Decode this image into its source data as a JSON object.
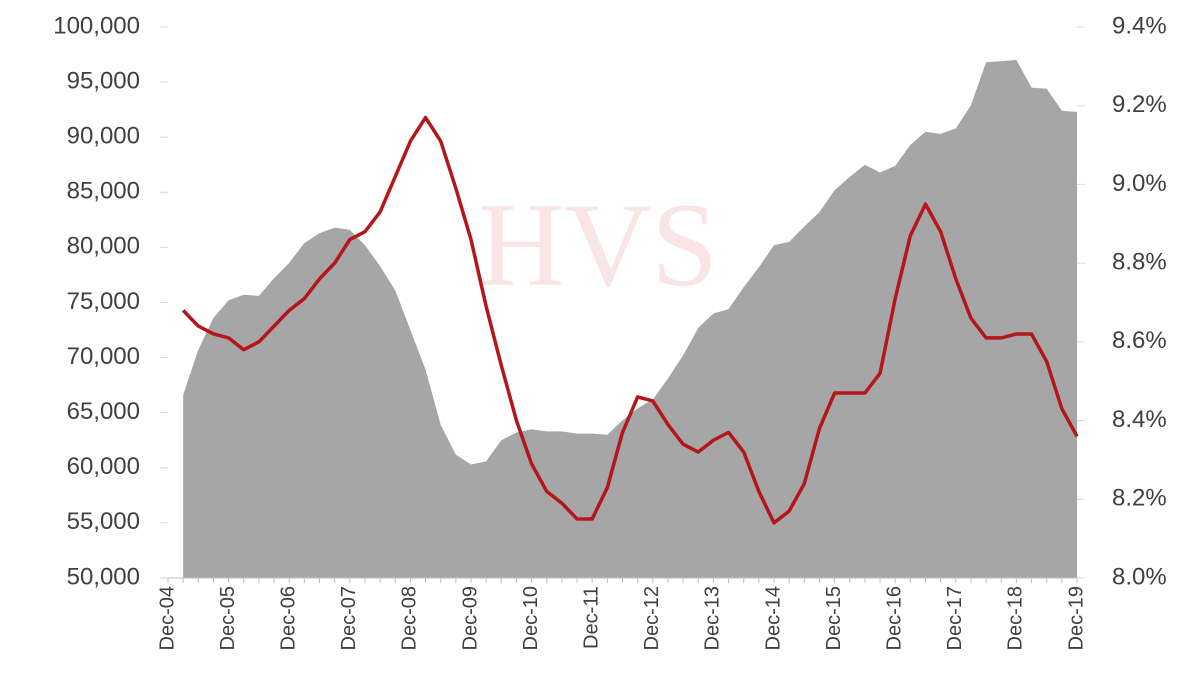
{
  "chart_data": {
    "type": "area",
    "watermark": "HVS",
    "categories": [
      "Dec-04",
      null,
      null,
      null,
      "Dec-05",
      null,
      null,
      null,
      "Dec-06",
      null,
      null,
      null,
      "Dec-07",
      null,
      null,
      null,
      "Dec-08",
      null,
      null,
      null,
      "Dec-09",
      null,
      null,
      null,
      "Dec-10",
      null,
      null,
      null,
      "Dec-11",
      null,
      null,
      null,
      "Dec-12",
      null,
      null,
      null,
      "Dec-13",
      null,
      null,
      null,
      "Dec-14",
      null,
      null,
      null,
      "Dec-15",
      null,
      null,
      null,
      "Dec-16",
      null,
      null,
      null,
      "Dec-17",
      null,
      null,
      null,
      "Dec-18",
      null,
      null,
      null,
      "Dec-19"
    ],
    "series": [
      {
        "type": "area",
        "color": "#a6a6a6",
        "values": [
          null,
          66600,
          70700,
          73600,
          75200,
          75700,
          75600,
          77200,
          78600,
          80400,
          81300,
          81800,
          81600,
          80200,
          78300,
          76100,
          72500,
          68900,
          63900,
          61200,
          60300,
          60600,
          62500,
          63200,
          63500,
          63300,
          63300,
          63100,
          63100,
          63000,
          64300,
          65400,
          66200,
          68100,
          70200,
          72700,
          74000,
          74400,
          76400,
          78200,
          80200,
          80500,
          81900,
          83200,
          85200,
          86400,
          87500,
          86800,
          87400,
          89300,
          90500,
          90300,
          90800,
          92900,
          96800,
          96900,
          97000,
          94500,
          94400,
          92400,
          92300
        ]
      },
      {
        "type": "line",
        "axis": "y2",
        "color": "#b4161b",
        "values": [
          null,
          8.68,
          8.64,
          8.62,
          8.61,
          8.58,
          8.6,
          8.64,
          8.68,
          8.71,
          8.76,
          8.8,
          8.86,
          8.88,
          8.93,
          9.02,
          9.11,
          9.17,
          9.11,
          8.99,
          8.86,
          8.69,
          8.54,
          8.4,
          8.29,
          8.22,
          8.19,
          8.15,
          8.15,
          8.23,
          8.37,
          8.46,
          8.45,
          8.39,
          8.34,
          8.32,
          8.35,
          8.37,
          8.32,
          8.22,
          8.14,
          8.17,
          8.24,
          8.38,
          8.47,
          8.47,
          8.47,
          8.52,
          8.71,
          8.87,
          8.95,
          8.88,
          8.76,
          8.66,
          8.61,
          8.61,
          8.62,
          8.62,
          8.55,
          8.43,
          8.36
        ]
      }
    ],
    "ylim": [
      50000,
      100000
    ],
    "yticks": [
      {
        "value": 50000,
        "label": "50,000"
      },
      {
        "value": 55000,
        "label": "55,000"
      },
      {
        "value": 60000,
        "label": "60,000"
      },
      {
        "value": 65000,
        "label": "65,000"
      },
      {
        "value": 70000,
        "label": "70,000"
      },
      {
        "value": 75000,
        "label": "75,000"
      },
      {
        "value": 80000,
        "label": "80,000"
      },
      {
        "value": 85000,
        "label": "85,000"
      },
      {
        "value": 90000,
        "label": "90,000"
      },
      {
        "value": 95000,
        "label": "95,000"
      },
      {
        "value": 100000,
        "label": "100,000"
      }
    ],
    "y2lim": [
      8.0,
      9.4
    ],
    "y2ticks": [
      {
        "value": 8.0,
        "label": "8.0%"
      },
      {
        "value": 8.2,
        "label": "8.2%"
      },
      {
        "value": 8.4,
        "label": "8.4%"
      },
      {
        "value": 8.6,
        "label": "8.6%"
      },
      {
        "value": 8.8,
        "label": "8.8%"
      },
      {
        "value": 9.0,
        "label": "9.0%"
      },
      {
        "value": 9.2,
        "label": "9.2%"
      },
      {
        "value": 9.4,
        "label": "9.4%"
      }
    ],
    "grid": false
  }
}
